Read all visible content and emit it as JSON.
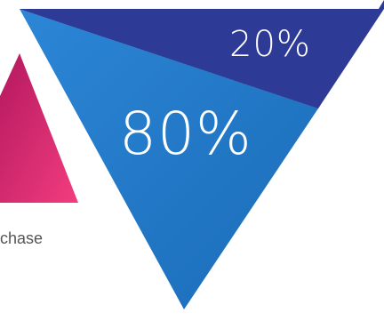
{
  "infographic": {
    "top_segment_label": "20%",
    "bottom_segment_label": "80%",
    "caption_fragment": "chase",
    "colors": {
      "top_segment": "#2d3a96",
      "bottom_segment": "#1f78c8",
      "side_shape_light": "#ee3a7d",
      "side_shape_dark": "#b4185f",
      "caption": "#555555"
    }
  }
}
